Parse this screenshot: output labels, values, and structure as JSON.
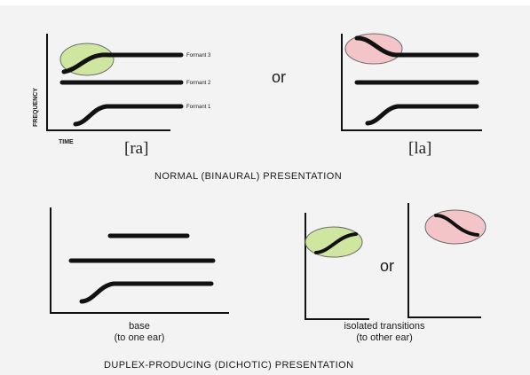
{
  "colors": {
    "background": "#f3f3f3",
    "ink": "#111111",
    "green_highlight": "#cfe6a0",
    "pink_highlight": "#f3c5c8",
    "highlight_edge": "#6a6a6a"
  },
  "top": {
    "axis_label_y": "FREQUENCY",
    "axis_label_x": "TIME",
    "formant_labels": [
      "Formant 3",
      "Formant 2",
      "Formant 1"
    ],
    "or_word": "or",
    "left_syllable": "[ra]",
    "right_syllable": "[la]",
    "caption": "NORMAL (BINAURAL) PRESENTATION"
  },
  "bottom": {
    "or_word": "or",
    "base_label_line1": "base",
    "base_label_line2": "(to one ear)",
    "isolated_label_line1": "isolated transitions",
    "isolated_label_line2": "(to other ear)",
    "caption": "DUPLEX-PRODUCING (DICHOTIC) PRESENTATION"
  }
}
